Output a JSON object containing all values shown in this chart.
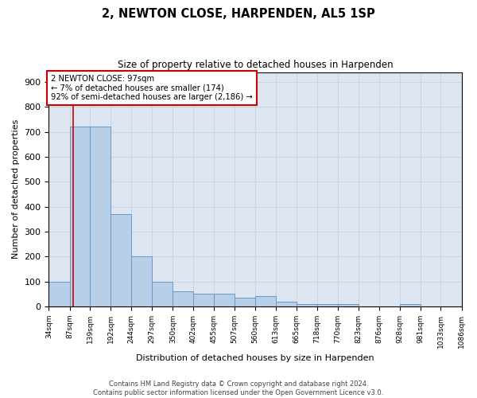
{
  "title": "2, NEWTON CLOSE, HARPENDEN, AL5 1SP",
  "subtitle": "Size of property relative to detached houses in Harpenden",
  "xlabel": "Distribution of detached houses by size in Harpenden",
  "ylabel": "Number of detached properties",
  "bin_edges": [
    34,
    87,
    139,
    192,
    244,
    297,
    350,
    402,
    455,
    507,
    560,
    613,
    665,
    718,
    770,
    823,
    876,
    928,
    981,
    1033,
    1086
  ],
  "bar_heights": [
    100,
    720,
    720,
    370,
    200,
    100,
    60,
    50,
    50,
    35,
    40,
    20,
    10,
    10,
    10,
    0,
    0,
    10,
    0,
    0
  ],
  "bar_color": "#b8cfe8",
  "bar_edge_color": "#6699cc",
  "grid_color": "#c8d4e4",
  "background_color": "#dde5f0",
  "property_size": 97,
  "red_line_color": "#cc0000",
  "annotation_text": "2 NEWTON CLOSE: 97sqm\n← 7% of detached houses are smaller (174)\n92% of semi-detached houses are larger (2,186) →",
  "annotation_box_color": "#ffffff",
  "annotation_box_edge": "#cc0000",
  "ylim": [
    0,
    940
  ],
  "yticks": [
    0,
    100,
    200,
    300,
    400,
    500,
    600,
    700,
    800,
    900
  ],
  "footer_line1": "Contains HM Land Registry data © Crown copyright and database right 2024.",
  "footer_line2": "Contains public sector information licensed under the Open Government Licence v3.0."
}
